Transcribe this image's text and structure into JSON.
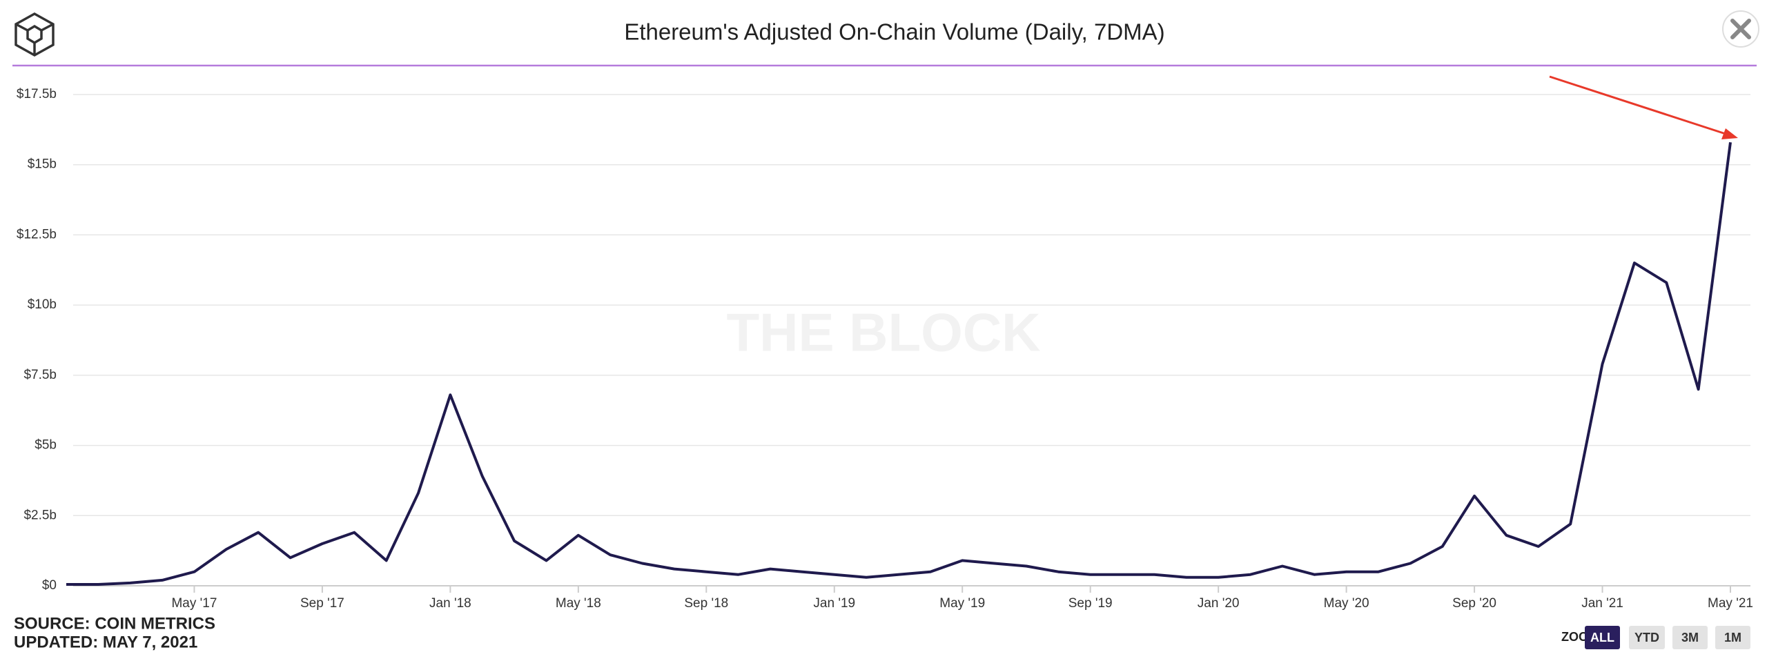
{
  "header": {
    "title": "Ethereum's Adjusted On-Chain Volume (Daily, 7DMA)"
  },
  "chart_data": {
    "type": "line",
    "watermark": "THE BLOCK",
    "x": [
      "2017-01",
      "2017-02",
      "2017-03",
      "2017-04",
      "2017-05",
      "2017-06",
      "2017-07",
      "2017-08",
      "2017-09",
      "2017-10",
      "2017-11",
      "2017-12",
      "2018-01",
      "2018-02",
      "2018-03",
      "2018-04",
      "2018-05",
      "2018-06",
      "2018-07",
      "2018-08",
      "2018-09",
      "2018-10",
      "2018-11",
      "2018-12",
      "2019-01",
      "2019-02",
      "2019-03",
      "2019-04",
      "2019-05",
      "2019-06",
      "2019-07",
      "2019-08",
      "2019-09",
      "2019-10",
      "2019-11",
      "2019-12",
      "2020-01",
      "2020-02",
      "2020-03",
      "2020-04",
      "2020-05",
      "2020-06",
      "2020-07",
      "2020-08",
      "2020-09",
      "2020-10",
      "2020-11",
      "2020-12",
      "2021-01",
      "2021-02",
      "2021-03",
      "2021-04",
      "2021-05"
    ],
    "series": [
      {
        "name": "Adjusted On-Chain Volume",
        "color": "#1f1a4d",
        "values": [
          0.05,
          0.05,
          0.1,
          0.2,
          0.5,
          1.3,
          1.9,
          1.0,
          1.5,
          1.9,
          0.9,
          3.3,
          6.8,
          3.9,
          1.6,
          0.9,
          1.8,
          1.1,
          0.8,
          0.6,
          0.5,
          0.4,
          0.6,
          0.5,
          0.4,
          0.3,
          0.4,
          0.5,
          0.9,
          0.8,
          0.7,
          0.5,
          0.4,
          0.4,
          0.4,
          0.3,
          0.3,
          0.4,
          0.7,
          0.4,
          0.5,
          0.5,
          0.8,
          1.4,
          3.2,
          1.8,
          1.4,
          2.2,
          7.9,
          11.5,
          10.8,
          7.0,
          15.8
        ]
      }
    ],
    "xlim": [
      "2017-01",
      "2021-05"
    ],
    "xticks": [
      {
        "value": "2017-05",
        "label": "May '17"
      },
      {
        "value": "2017-09",
        "label": "Sep '17"
      },
      {
        "value": "2018-01",
        "label": "Jan '18"
      },
      {
        "value": "2018-05",
        "label": "May '18"
      },
      {
        "value": "2018-09",
        "label": "Sep '18"
      },
      {
        "value": "2019-01",
        "label": "Jan '19"
      },
      {
        "value": "2019-05",
        "label": "May '19"
      },
      {
        "value": "2019-09",
        "label": "Sep '19"
      },
      {
        "value": "2020-01",
        "label": "Jan '20"
      },
      {
        "value": "2020-05",
        "label": "May '20"
      },
      {
        "value": "2020-09",
        "label": "Sep '20"
      },
      {
        "value": "2021-01",
        "label": "Jan '21"
      },
      {
        "value": "2021-05",
        "label": "May '21"
      }
    ],
    "ylim": [
      0,
      17.5
    ],
    "yticks": [
      {
        "value": 0,
        "label": "$0"
      },
      {
        "value": 2.5,
        "label": "$2.5b"
      },
      {
        "value": 5,
        "label": "$5b"
      },
      {
        "value": 7.5,
        "label": "$7.5b"
      },
      {
        "value": 10,
        "label": "$10b"
      },
      {
        "value": 12.5,
        "label": "$12.5b"
      },
      {
        "value": 15,
        "label": "$15b"
      },
      {
        "value": 17.5,
        "label": "$17.5b"
      }
    ],
    "grid": true
  },
  "footer": {
    "source": "SOURCE: COIN METRICS",
    "updated": "UPDATED: MAY 7, 2021"
  },
  "zoom": {
    "label": "ZOOM",
    "buttons": [
      "ALL",
      "YTD",
      "3M",
      "1M"
    ]
  }
}
